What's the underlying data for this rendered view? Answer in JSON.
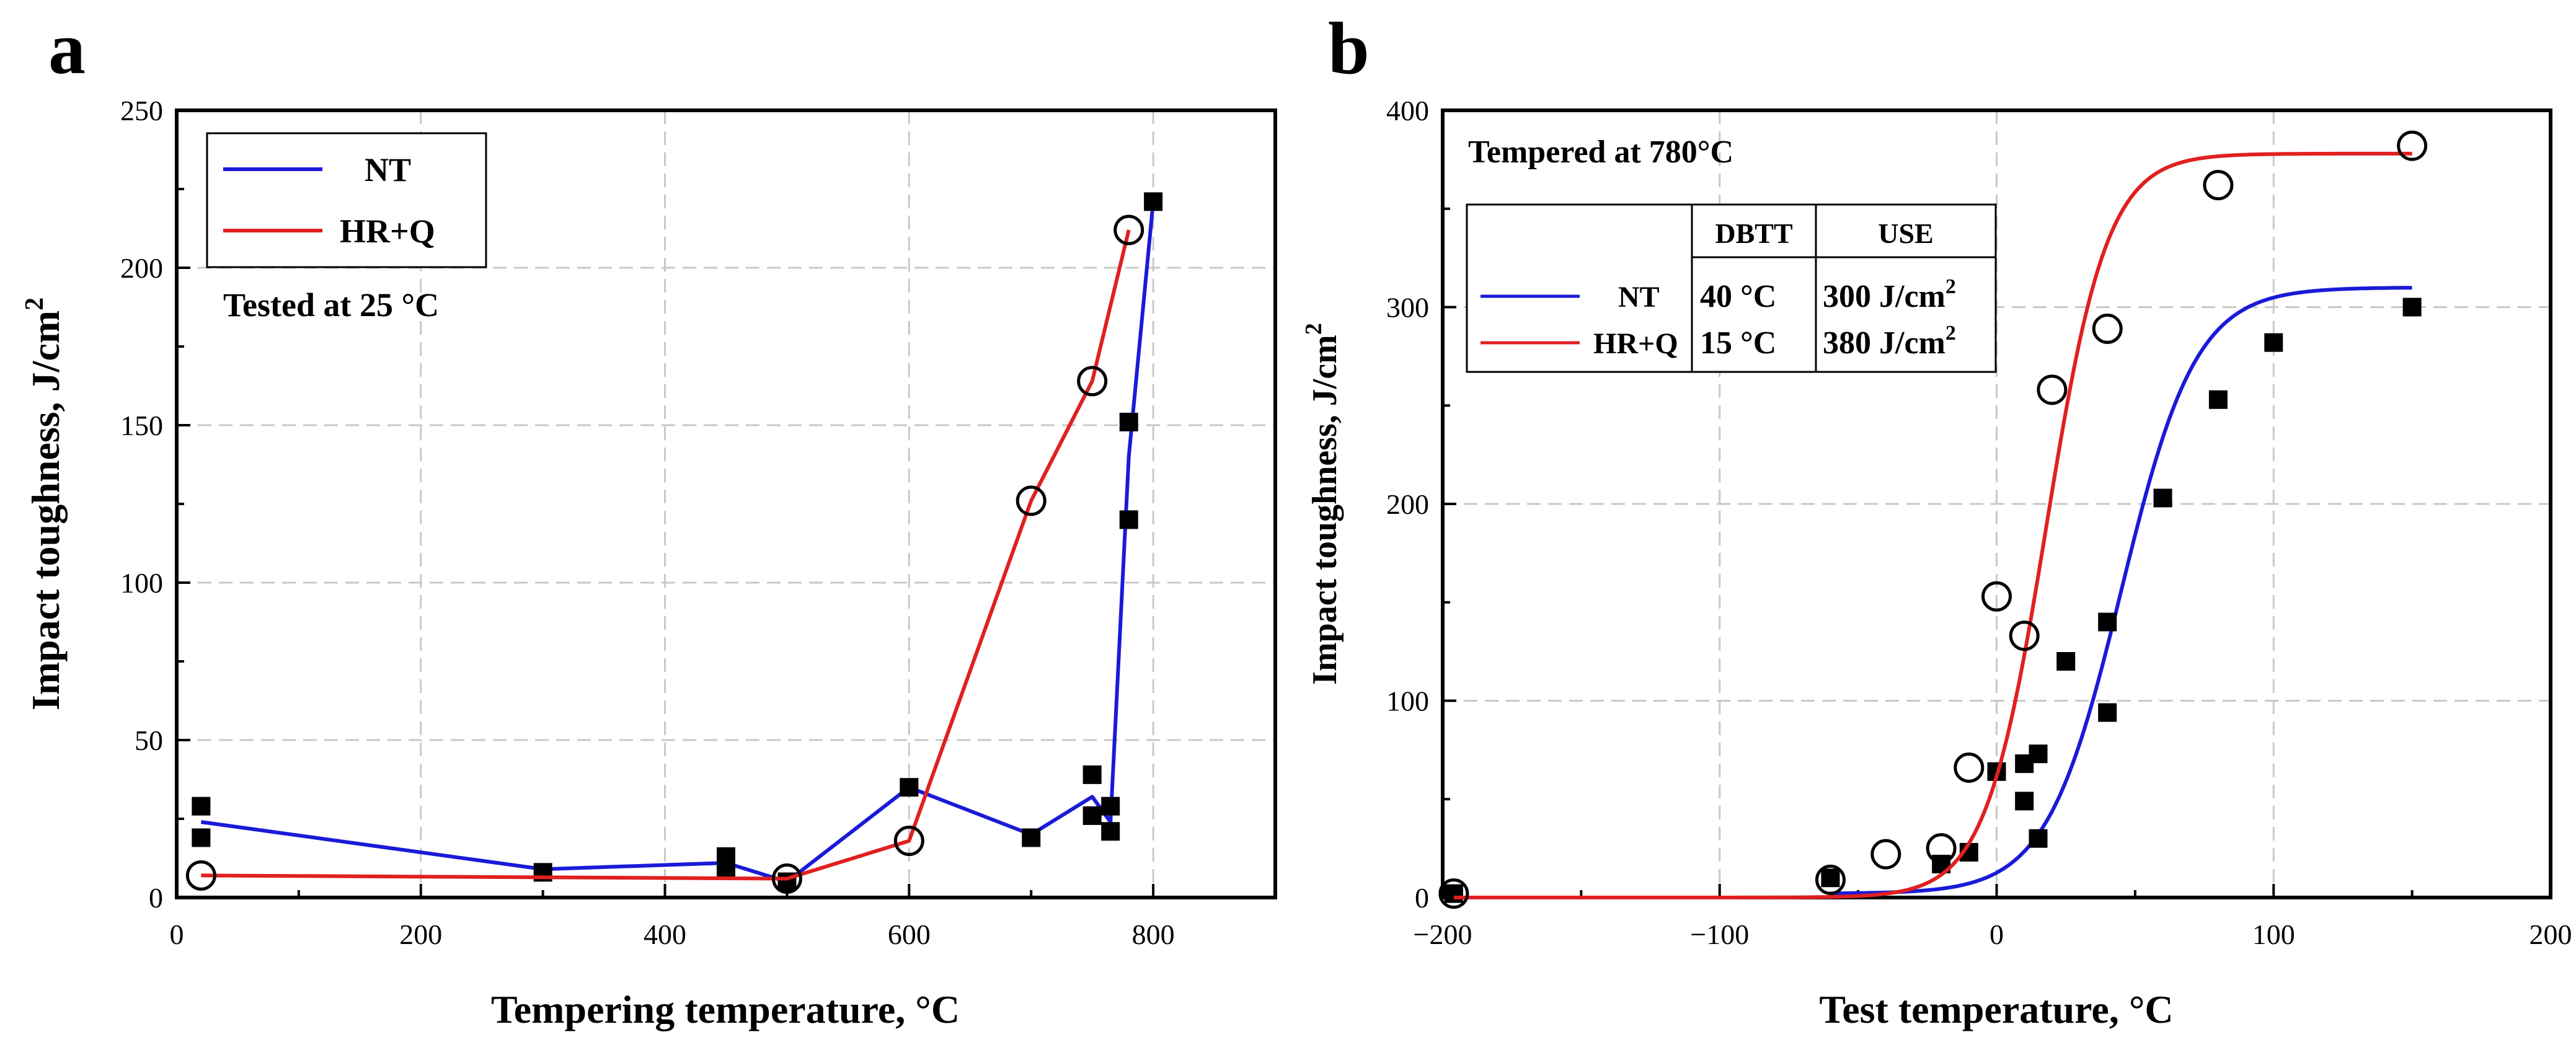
{
  "chart_data": [
    {
      "panel_label": "a",
      "type": "line",
      "title": "",
      "xlabel": "Tempering temperature, °C",
      "ylabel": "Impact toughness, J/cm",
      "ylabel_sup": "2",
      "xlim": [
        0,
        900
      ],
      "ylim": [
        0,
        250
      ],
      "xticks": [
        0,
        200,
        400,
        600,
        800
      ],
      "yticks": [
        0,
        50,
        100,
        150,
        200,
        250
      ],
      "xtick_labels": [
        "0",
        "200",
        "400",
        "600",
        "800"
      ],
      "ytick_labels": [
        "0",
        "50",
        "100",
        "150",
        "200",
        "250"
      ],
      "grid": true,
      "legend_position": "top-left",
      "legend": [
        {
          "label": "NT",
          "color": "#1a1ad8"
        },
        {
          "label": "HR+Q",
          "color": "#e02020"
        }
      ],
      "annotation": "Tested at 25 °C",
      "series": [
        {
          "name": "NT",
          "color": "#1a1ad8",
          "marker": "filled-square",
          "line": {
            "x": [
              20,
              300,
              450,
              500,
              600,
              700,
              750,
              765,
              780,
              800
            ],
            "y": [
              24,
              9,
              11,
              5,
              35,
              20,
              32,
              24,
              140,
              221
            ]
          },
          "points": {
            "x": [
              20,
              20,
              300,
              450,
              450,
              500,
              600,
              700,
              750,
              750,
              765,
              765,
              780,
              780,
              800
            ],
            "y": [
              29,
              19,
              8,
              13,
              9,
              5,
              35,
              19,
              39,
              26,
              29,
              21,
              151,
              120,
              221
            ]
          }
        },
        {
          "name": "HR+Q",
          "color": "#e02020",
          "marker": "open-circle",
          "line": {
            "x": [
              20,
              500,
              600,
              700,
              750,
              780
            ],
            "y": [
              7,
              6,
              18,
              126,
              164,
              212
            ]
          },
          "points": {
            "x": [
              20,
              500,
              600,
              700,
              750,
              780
            ],
            "y": [
              7,
              6,
              18,
              126,
              164,
              212
            ]
          }
        }
      ]
    },
    {
      "panel_label": "b",
      "type": "scatter",
      "title": "",
      "xlabel": "Test temperature, °C",
      "ylabel": "Impact toughness, J/cm",
      "ylabel_sup": "2",
      "xlim": [
        -200,
        200
      ],
      "ylim": [
        0,
        400
      ],
      "xticks": [
        -200,
        -100,
        0,
        100,
        200
      ],
      "yticks": [
        0,
        100,
        200,
        300,
        400
      ],
      "xtick_labels": [
        "−200",
        "−100",
        "0",
        "100",
        "200"
      ],
      "ytick_labels": [
        "0",
        "100",
        "200",
        "300",
        "400"
      ],
      "grid": true,
      "annotation": "Tempered at 780°C",
      "table": {
        "headers": [
          "",
          "DBTT",
          "USE"
        ],
        "rows": [
          {
            "name": "NT",
            "color": "#1a1ad8",
            "dbtt": "40 °C",
            "use": "300 J/cm",
            "use_sup": "2"
          },
          {
            "name": "HR+Q",
            "color": "#e02020",
            "dbtt": "15 °C",
            "use": "380 J/cm",
            "use_sup": "2"
          }
        ]
      },
      "series": [
        {
          "name": "NT",
          "color": "#1a1ad8",
          "marker": "filled-square",
          "fit": {
            "model": "tanh",
            "lower": 2,
            "upper": 310,
            "t0": 45,
            "c": 27,
            "x_range": [
              -60,
              150
            ]
          },
          "points": {
            "x": [
              -196,
              -60,
              -20,
              -10,
              0,
              10,
              10,
              15,
              15,
              25,
              40,
              40,
              60,
              80,
              100,
              150
            ],
            "y": [
              2,
              10,
              17,
              23,
              64,
              68,
              49,
              73,
              30,
              120,
              140,
              94,
              203,
              253,
              282,
              300
            ]
          }
        },
        {
          "name": "HR+Q",
          "color": "#e02020",
          "marker": "open-circle",
          "fit": {
            "model": "tanh",
            "lower": 0,
            "upper": 378,
            "t0": 18,
            "c": 22,
            "x_range": [
              -196,
              150
            ]
          },
          "points": {
            "x": [
              -196,
              -60,
              -40,
              -20,
              -10,
              0,
              10,
              20,
              40,
              80,
              150
            ],
            "y": [
              2,
              9,
              22,
              25,
              66,
              153,
              133,
              258,
              289,
              362,
              382
            ]
          }
        }
      ]
    }
  ]
}
